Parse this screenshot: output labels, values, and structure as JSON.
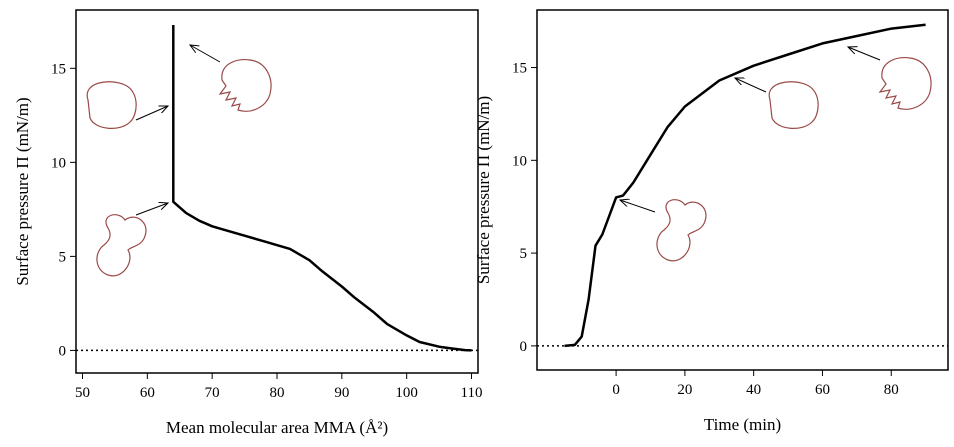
{
  "chart_data": [
    {
      "type": "line",
      "xlabel": "Mean molecular area MMA (Å²)",
      "ylabel": "Surface pressure Π (mN/m)",
      "x": [
        110,
        109,
        107,
        105,
        102,
        100,
        97,
        95,
        92,
        90,
        87,
        85,
        82,
        78,
        75,
        72,
        70,
        68,
        66,
        64,
        64
      ],
      "series": [
        {
          "color": "#000000",
          "values": [
            0,
            0.02,
            0.1,
            0.2,
            0.45,
            0.8,
            1.4,
            2,
            2.8,
            3.4,
            4.2,
            4.8,
            5.4,
            5.8,
            6.1,
            6.4,
            6.6,
            6.9,
            7.3,
            7.9,
            17.3
          ]
        }
      ],
      "xlim": [
        49,
        111
      ],
      "ylim": [
        -1.2,
        18.1
      ],
      "xticks": [
        50,
        60,
        70,
        80,
        90,
        100,
        110
      ],
      "yticks": [
        0,
        5,
        10,
        15
      ],
      "hline": 0
    },
    {
      "type": "line",
      "xlabel": "Time (min)",
      "ylabel": "Surface pressure Π (mN/m)",
      "x": [
        -15,
        -12,
        -10,
        -8,
        -6,
        -4,
        -2,
        0,
        2,
        5,
        10,
        15,
        20,
        30,
        40,
        50,
        60,
        70,
        80,
        90
      ],
      "series": [
        {
          "color": "#000000",
          "values": [
            0,
            0.05,
            0.5,
            2.5,
            5.4,
            6,
            7,
            8,
            8.1,
            8.8,
            10.3,
            11.8,
            12.9,
            14.3,
            15.1,
            15.7,
            16.3,
            16.7,
            17.1,
            17.3
          ]
        }
      ],
      "xlim": [
        -23,
        96.5
      ],
      "ylim": [
        -1.3,
        18.1
      ],
      "xticks": [
        0,
        20,
        40,
        60,
        80
      ],
      "yticks": [
        0,
        5,
        10,
        15
      ],
      "hline": 0
    }
  ]
}
